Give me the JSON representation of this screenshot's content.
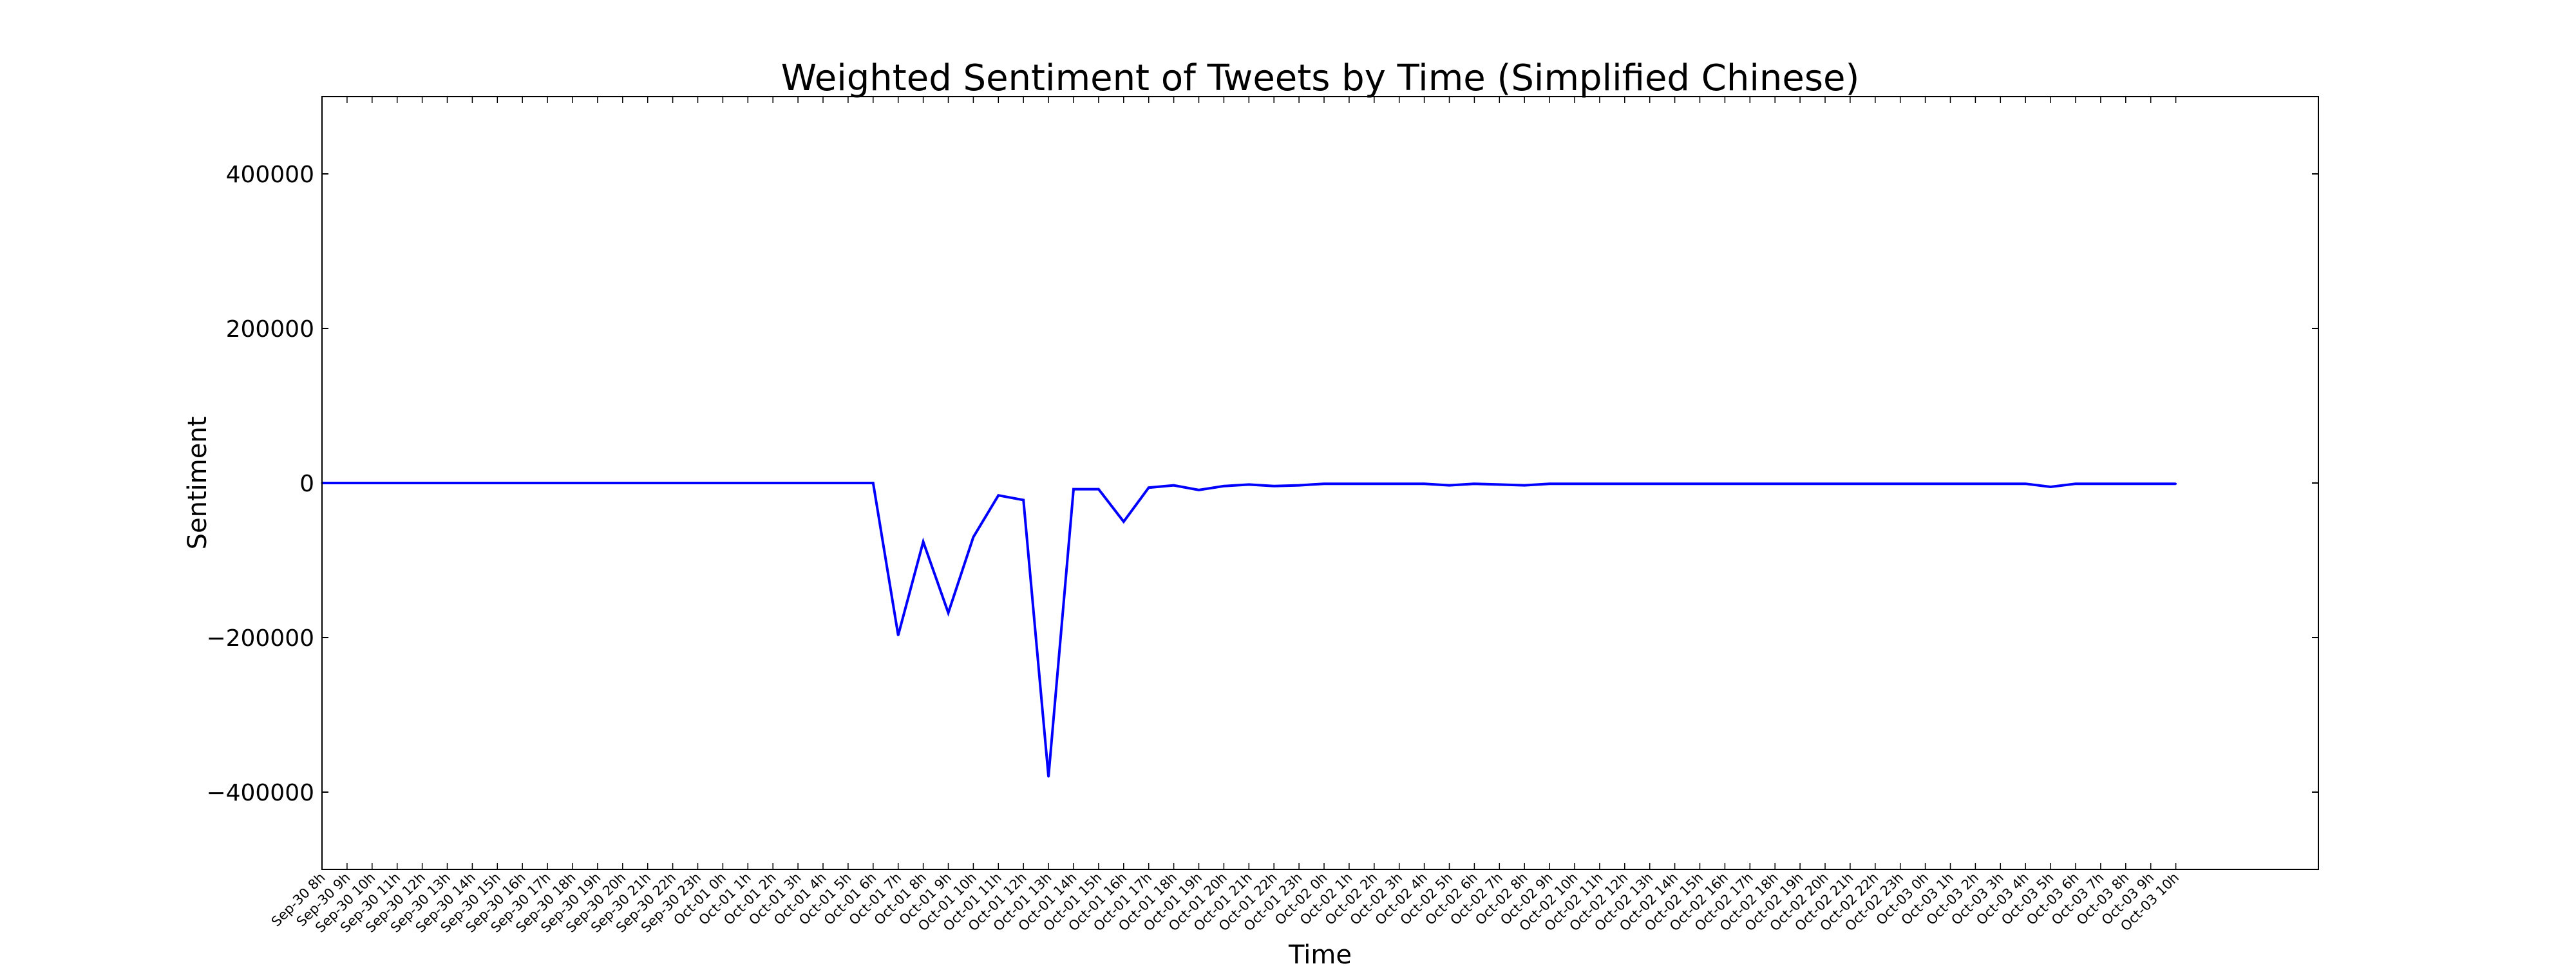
{
  "chart_data": {
    "type": "line",
    "title": "Weighted Sentiment of Tweets by Time (Simplified Chinese)",
    "xlabel": "Time",
    "ylabel": "Sentiment",
    "ylim": [
      -500000,
      500000
    ],
    "yticks": [
      -400000,
      -200000,
      0,
      200000,
      400000
    ],
    "ytick_labels": [
      "−400000",
      "−200000",
      "0",
      "200000",
      "400000"
    ],
    "grid": false,
    "categories": [
      "Sep-30 8h",
      "Sep-30 9h",
      "Sep-30 10h",
      "Sep-30 11h",
      "Sep-30 12h",
      "Sep-30 13h",
      "Sep-30 14h",
      "Sep-30 15h",
      "Sep-30 16h",
      "Sep-30 17h",
      "Sep-30 18h",
      "Sep-30 19h",
      "Sep-30 20h",
      "Sep-30 21h",
      "Sep-30 22h",
      "Sep-30 23h",
      "Oct-01 0h",
      "Oct-01 1h",
      "Oct-01 2h",
      "Oct-01 3h",
      "Oct-01 4h",
      "Oct-01 5h",
      "Oct-01 6h",
      "Oct-01 7h",
      "Oct-01 8h",
      "Oct-01 9h",
      "Oct-01 10h",
      "Oct-01 11h",
      "Oct-01 12h",
      "Oct-01 13h",
      "Oct-01 14h",
      "Oct-01 15h",
      "Oct-01 16h",
      "Oct-01 17h",
      "Oct-01 18h",
      "Oct-01 19h",
      "Oct-01 20h",
      "Oct-01 21h",
      "Oct-01 22h",
      "Oct-01 23h",
      "Oct-02 0h",
      "Oct-02 1h",
      "Oct-02 2h",
      "Oct-02 3h",
      "Oct-02 4h",
      "Oct-02 5h",
      "Oct-02 6h",
      "Oct-02 7h",
      "Oct-02 8h",
      "Oct-02 9h",
      "Oct-02 10h",
      "Oct-02 11h",
      "Oct-02 12h",
      "Oct-02 13h",
      "Oct-02 14h",
      "Oct-02 15h",
      "Oct-02 16h",
      "Oct-02 17h",
      "Oct-02 18h",
      "Oct-02 19h",
      "Oct-02 20h",
      "Oct-02 21h",
      "Oct-02 22h",
      "Oct-02 23h",
      "Oct-03 0h",
      "Oct-03 1h",
      "Oct-03 2h",
      "Oct-03 3h",
      "Oct-03 4h",
      "Oct-03 5h",
      "Oct-03 6h",
      "Oct-03 7h",
      "Oct-03 8h",
      "Oct-03 9h",
      "Oct-03 10h"
    ],
    "series": [
      {
        "color": "#0000ff",
        "values": [
          0,
          0,
          0,
          0,
          0,
          0,
          0,
          0,
          0,
          0,
          0,
          0,
          0,
          0,
          0,
          0,
          0,
          0,
          0,
          0,
          0,
          0,
          0,
          -197000,
          -76000,
          -168000,
          -70000,
          -16000,
          -22000,
          -380000,
          -8000,
          -8000,
          -50000,
          -6000,
          -3000,
          -9000,
          -4000,
          -2000,
          -4000,
          -3000,
          -1000,
          -1000,
          -1000,
          -1000,
          -1000,
          -3000,
          -1000,
          -2000,
          -3000,
          -1000,
          -1000,
          -1000,
          -1000,
          -1000,
          -1000,
          -1000,
          -1000,
          -1000,
          -1000,
          -1000,
          -1000,
          -1000,
          -1000,
          -1000,
          -1000,
          -1000,
          -1000,
          -1000,
          -1000,
          -5000,
          -1000,
          -1000,
          -1000,
          -1000,
          -1000
        ]
      }
    ]
  }
}
